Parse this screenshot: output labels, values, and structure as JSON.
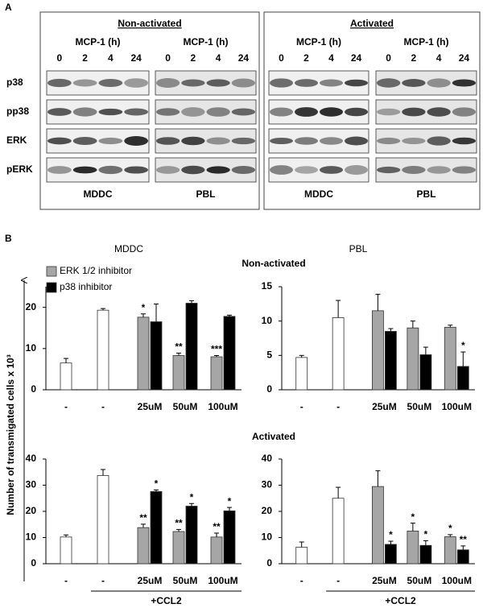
{
  "panel_a": {
    "label": "A",
    "rows": [
      "p38",
      "pp38",
      "ERK",
      "pERK"
    ],
    "groups": [
      {
        "title": "Non-activated",
        "lanes": [
          {
            "heading": "MCP-1 (h)",
            "times": [
              "0",
              "2",
              "4",
              "24"
            ],
            "cell": "MDDC"
          },
          {
            "heading": "MCP-1 (h)",
            "times": [
              "0",
              "2",
              "4",
              "24"
            ],
            "cell": "PBL"
          }
        ]
      },
      {
        "title": "Activated",
        "lanes": [
          {
            "heading": "MCP-1 (h)",
            "times": [
              "0",
              "2",
              "4",
              "24"
            ],
            "cell": "MDDC"
          },
          {
            "heading": "MCP-1 (h)",
            "times": [
              "0",
              "2",
              "4",
              "24"
            ],
            "cell": "PBL"
          }
        ]
      }
    ]
  },
  "panel_b": {
    "label": "B",
    "column_titles": [
      "MDDC",
      "PBL"
    ],
    "row_titles": [
      "Non-activated",
      "Activated"
    ],
    "y_label": "Number of transmigated cells x 10³"
  },
  "chart_data": [
    {
      "type": "bar",
      "categories": [
        "-",
        "-",
        "25uM",
        "50uM",
        "100uM"
      ],
      "ylim": [
        0,
        25
      ],
      "yticks": [
        0,
        10,
        20
      ],
      "series": [
        {
          "color": "#ffffff",
          "values": [
            6.5,
            19.3,
            null,
            null,
            null
          ],
          "errors": [
            1.1,
            0.4,
            null,
            null,
            null
          ]
        },
        {
          "name": "ERK 1/2 inhibitor",
          "color": "#a6a6a6",
          "values": [
            null,
            null,
            17.6,
            8.3,
            8
          ],
          "errors": [
            null,
            null,
            0.8,
            0.6,
            0.3
          ],
          "annotations": [
            null,
            null,
            "*",
            "**",
            "***"
          ]
        },
        {
          "name": "p38 inhibitor",
          "color": "#000000",
          "values": [
            null,
            null,
            16.5,
            21,
            17.8
          ],
          "errors": [
            null,
            null,
            4.3,
            0.6,
            0.3
          ]
        }
      ]
    },
    {
      "type": "bar",
      "categories": [
        "-",
        "-",
        "25uM",
        "50uM",
        "100uM"
      ],
      "ylim": [
        0,
        15
      ],
      "yticks": [
        0,
        5,
        10,
        15
      ],
      "series": [
        {
          "color": "#ffffff",
          "values": [
            4.7,
            10.5,
            null,
            null,
            null
          ],
          "errors": [
            0.3,
            2.5,
            null,
            null,
            null
          ]
        },
        {
          "color": "#a6a6a6",
          "values": [
            null,
            null,
            11.5,
            9,
            9.1
          ],
          "errors": [
            null,
            null,
            2.4,
            1,
            0.3
          ]
        },
        {
          "color": "#000000",
          "values": [
            null,
            null,
            8.5,
            5.1,
            3.4
          ],
          "errors": [
            null,
            null,
            0.4,
            1.1,
            2.1
          ],
          "annotations": [
            null,
            null,
            null,
            null,
            "*"
          ]
        }
      ]
    },
    {
      "type": "bar",
      "categories": [
        "-",
        "-",
        "25uM",
        "50uM",
        "100uM"
      ],
      "ylim": [
        0,
        40
      ],
      "yticks": [
        0,
        10,
        20,
        30,
        40
      ],
      "group_label": "+CCL2",
      "series": [
        {
          "color": "#ffffff",
          "values": [
            10.2,
            33.7,
            null,
            null,
            null
          ],
          "errors": [
            0.8,
            2.3,
            null,
            null,
            null
          ]
        },
        {
          "color": "#a6a6a6",
          "values": [
            null,
            null,
            13.8,
            12.3,
            10.2
          ],
          "errors": [
            null,
            null,
            1.3,
            0.8,
            1.5
          ],
          "annotations": [
            null,
            null,
            "**",
            "**",
            "**"
          ]
        },
        {
          "color": "#000000",
          "values": [
            null,
            null,
            27.6,
            22,
            20.2
          ],
          "errors": [
            null,
            null,
            0.6,
            1,
            1.3
          ],
          "annotations": [
            null,
            null,
            "*",
            "*",
            "*"
          ]
        }
      ]
    },
    {
      "type": "bar",
      "categories": [
        "-",
        "-",
        "25uM",
        "50uM",
        "100uM"
      ],
      "ylim": [
        0,
        40
      ],
      "yticks": [
        0,
        10,
        20,
        30,
        40
      ],
      "group_label": "+CCL2",
      "series": [
        {
          "color": "#ffffff",
          "values": [
            6.3,
            25,
            null,
            null,
            null
          ],
          "errors": [
            2,
            4.2,
            null,
            null,
            null
          ]
        },
        {
          "color": "#a6a6a6",
          "values": [
            null,
            null,
            29.5,
            12.5,
            10.3
          ],
          "errors": [
            null,
            null,
            6,
            3,
            0.8
          ],
          "annotations": [
            null,
            null,
            null,
            "*",
            "*"
          ]
        },
        {
          "color": "#000000",
          "values": [
            null,
            null,
            7.4,
            7,
            5.3
          ],
          "errors": [
            null,
            null,
            1.2,
            1.8,
            1.5
          ],
          "annotations": [
            null,
            null,
            "*",
            "*",
            "**"
          ]
        }
      ]
    }
  ]
}
